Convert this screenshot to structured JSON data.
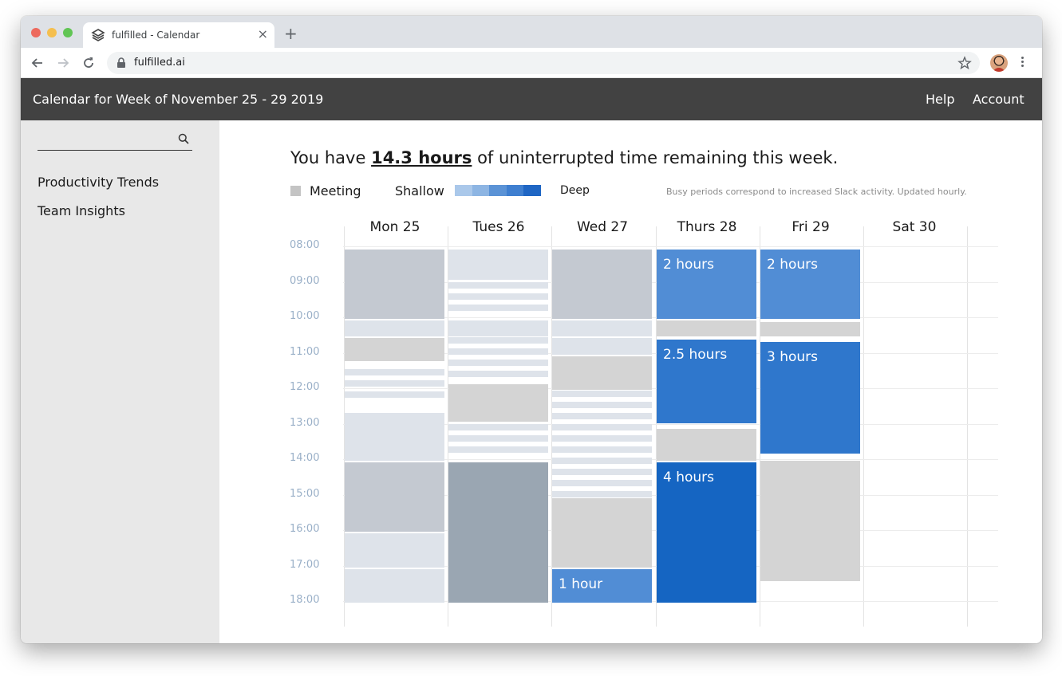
{
  "browser": {
    "tab_title": "fulfilled - Calendar",
    "url": "fulfilled.ai"
  },
  "header": {
    "title": "Calendar for Week of November 25 - 29 2019",
    "links": [
      "Help",
      "Account"
    ]
  },
  "sidebar": {
    "search_placeholder": "",
    "links": [
      "Productivity Trends",
      "Team Insights"
    ]
  },
  "summary": {
    "prefix": "You have ",
    "hours": "14.3 hours",
    "suffix": " of uninterrupted time remaining this week."
  },
  "legend": {
    "meeting": "Meeting",
    "shallow": "Shallow",
    "deep": "Deep",
    "note": "Busy periods correspond to increased Slack activity. Updated hourly.",
    "ramp_colors": [
      "#aac8ea",
      "#8db5e3",
      "#5b93d6",
      "#3f7fd0",
      "#1f66c4"
    ]
  },
  "calendar": {
    "days": [
      "Mon 25",
      "Tues 26",
      "Wed 27",
      "Thurs 28",
      "Fri 29",
      "Sat 30"
    ],
    "times": [
      "08:00",
      "09:00",
      "10:00",
      "11:00",
      "12:00",
      "13:00",
      "14:00",
      "15:00",
      "16:00",
      "17:00",
      "18:00"
    ],
    "colors": {
      "meeting": "#d4d4d4",
      "busy_light": "#dee3ea",
      "busy_mid": "#c4c9d1",
      "busy_dark": "#9aa6b2",
      "shallow": "#518dd5",
      "mid": "#2f77cc",
      "deep": "#1565c2"
    },
    "events": [
      {
        "day": 0,
        "start": 8.0,
        "end": 10.0,
        "kind": "busy_mid",
        "label": ""
      },
      {
        "day": 0,
        "start": 10.0,
        "end": 10.5,
        "kind": "busy_light",
        "label": ""
      },
      {
        "day": 0,
        "start": 10.5,
        "end": 11.2,
        "kind": "meeting",
        "label": ""
      },
      {
        "day": 0,
        "start": 12.6,
        "end": 14.0,
        "kind": "busy_light",
        "label": ""
      },
      {
        "day": 0,
        "start": 14.0,
        "end": 16.0,
        "kind": "busy_mid",
        "label": ""
      },
      {
        "day": 0,
        "start": 16.0,
        "end": 17.0,
        "kind": "busy_light",
        "label": ""
      },
      {
        "day": 0,
        "start": 17.0,
        "end": 18.0,
        "kind": "busy_light",
        "label": ""
      },
      {
        "day": 1,
        "start": 8.0,
        "end": 8.9,
        "kind": "busy_light",
        "label": ""
      },
      {
        "day": 1,
        "start": 10.0,
        "end": 10.5,
        "kind": "busy_light",
        "label": ""
      },
      {
        "day": 1,
        "start": 11.8,
        "end": 12.9,
        "kind": "meeting",
        "label": ""
      },
      {
        "day": 1,
        "start": 14.0,
        "end": 18.0,
        "kind": "busy_dark",
        "label": ""
      },
      {
        "day": 2,
        "start": 8.0,
        "end": 10.0,
        "kind": "busy_mid",
        "label": ""
      },
      {
        "day": 2,
        "start": 10.0,
        "end": 10.5,
        "kind": "busy_light",
        "label": ""
      },
      {
        "day": 2,
        "start": 10.5,
        "end": 11.0,
        "kind": "busy_light",
        "label": ""
      },
      {
        "day": 2,
        "start": 11.0,
        "end": 12.0,
        "kind": "meeting",
        "label": ""
      },
      {
        "day": 2,
        "start": 15.0,
        "end": 17.0,
        "kind": "meeting",
        "label": ""
      },
      {
        "day": 2,
        "start": 17.0,
        "end": 18.0,
        "kind": "shallow",
        "label": "1 hour"
      },
      {
        "day": 3,
        "start": 8.0,
        "end": 10.0,
        "kind": "shallow",
        "label": "2 hours"
      },
      {
        "day": 3,
        "start": 10.0,
        "end": 10.5,
        "kind": "meeting",
        "label": ""
      },
      {
        "day": 3,
        "start": 10.55,
        "end": 12.95,
        "kind": "mid",
        "label": "2.5 hours"
      },
      {
        "day": 3,
        "start": 13.05,
        "end": 14.0,
        "kind": "meeting",
        "label": ""
      },
      {
        "day": 3,
        "start": 14.0,
        "end": 18.0,
        "kind": "deep",
        "label": "4 hours"
      },
      {
        "day": 4,
        "start": 8.0,
        "end": 10.0,
        "kind": "shallow",
        "label": "2 hours"
      },
      {
        "day": 4,
        "start": 10.05,
        "end": 10.5,
        "kind": "meeting",
        "label": ""
      },
      {
        "day": 4,
        "start": 10.6,
        "end": 13.8,
        "kind": "mid",
        "label": "3 hours"
      },
      {
        "day": 4,
        "start": 13.95,
        "end": 17.4,
        "kind": "meeting",
        "label": ""
      }
    ],
    "activity_stripes": [
      {
        "day": 0,
        "start": 11.4,
        "end": 12.3
      },
      {
        "day": 1,
        "start": 8.95,
        "end": 10.0
      },
      {
        "day": 1,
        "start": 10.5,
        "end": 11.8
      },
      {
        "day": 1,
        "start": 12.95,
        "end": 14.0
      },
      {
        "day": 2,
        "start": 12.0,
        "end": 15.0
      }
    ]
  }
}
